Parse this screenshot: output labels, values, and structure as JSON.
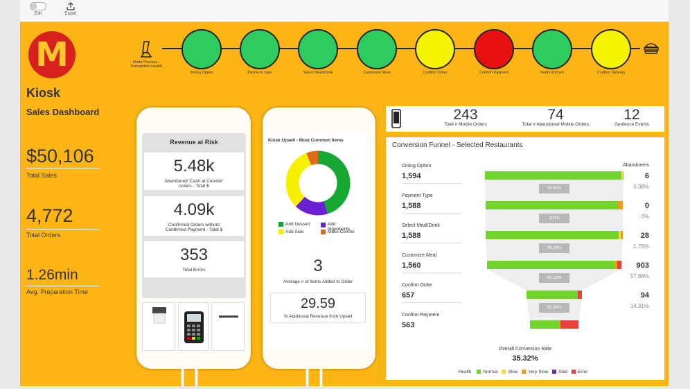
{
  "toolbar": {
    "edit_label": "Edit",
    "export_label": "Export"
  },
  "brand": {
    "logo_letter": "M",
    "title": "Kiosk",
    "subtitle": "Sales Dashboard"
  },
  "kpis": [
    {
      "value": "$50,106",
      "label": "Total Sales"
    },
    {
      "value": "4,772",
      "label": "Total Orders"
    },
    {
      "value": "1.26min",
      "label": "Avg. Preparation Time"
    }
  ],
  "pipeline": {
    "start_label": "Order Process - Transaction Health",
    "nodes": [
      {
        "label": "Dining Option",
        "color": "#2ecc5f"
      },
      {
        "label": "Payment Type",
        "color": "#2ecc5f"
      },
      {
        "label": "Select Meal/Drink",
        "color": "#2ecc5f"
      },
      {
        "label": "Customize Meal",
        "color": "#2ecc5f"
      },
      {
        "label": "Confirm Order",
        "color": "#f5f500"
      },
      {
        "label": "Confirm Payment",
        "color": "#e81010"
      },
      {
        "label": "Notify Kitchen",
        "color": "#2ecc5f"
      },
      {
        "label": "Confirm Delivery",
        "color": "#f5f500"
      }
    ]
  },
  "revenue_at_risk": {
    "title": "Revenue at Risk",
    "cards": [
      {
        "value": "5.48k",
        "label": "Abandoned 'Cash at Counter' orders - Total $"
      },
      {
        "value": "4.09k",
        "label": "Confirmed Orders without Confirmed Payment - Total $"
      },
      {
        "value": "353",
        "label": "Total Errors"
      }
    ]
  },
  "upsell": {
    "title": "Kiosk Upsell - Most Common Items",
    "legend": [
      {
        "label": "Add Dessert",
        "color": "#17a834"
      },
      {
        "label": "Add Ingredients",
        "color": "#6a1fd0"
      },
      {
        "label": "Add Side",
        "color": "#f5f000"
      },
      {
        "label": "Make Combo",
        "color": "#e06a17"
      }
    ],
    "donut_shares": [
      0.45,
      0.17,
      0.32,
      0.06
    ],
    "avg_items_value": "3",
    "avg_items_label": "Average # of Items Added to Order",
    "pct_revenue_value": "29.59",
    "pct_revenue_label": "% Additional Revenue from Upsell"
  },
  "mobile": [
    {
      "value": "243",
      "label": "Total # Mobile Orders"
    },
    {
      "value": "74",
      "label": "Total # Abandoned Mobile Orders"
    },
    {
      "value": "12",
      "label": "Geofence Events"
    }
  ],
  "funnel": {
    "title": "Conversion Funnel - Selected Restaurants",
    "abandoners_label": "Abandoners",
    "steps": [
      {
        "name": "Dining Option",
        "value": "1,594",
        "abandoners": "6",
        "abandon_pct": "0.38%",
        "conversion": "99.62%",
        "share": 1.0,
        "health": [
          0.985,
          0.01,
          0.005,
          0,
          0
        ]
      },
      {
        "name": "Payment Type",
        "value": "1,588",
        "abandoners": "0",
        "abandon_pct": "0%",
        "conversion": "100%",
        "share": 0.99,
        "health": [
          0.965,
          0.0,
          0.035,
          0,
          0
        ]
      },
      {
        "name": "Select Meal/Drink",
        "value": "1,588",
        "abandoners": "28",
        "abandon_pct": "1.76%",
        "conversion": "98.24%",
        "share": 0.99,
        "health": [
          0.97,
          0.015,
          0.015,
          0,
          0
        ]
      },
      {
        "name": "Customize Meal",
        "value": "1,560",
        "abandoners": "903",
        "abandon_pct": "57.88%",
        "conversion": "42.12%",
        "share": 0.97,
        "health": [
          0.95,
          0.0,
          0.02,
          0,
          0.03
        ]
      },
      {
        "name": "Confirm Order",
        "value": "657",
        "abandoners": "94",
        "abandon_pct": "14.31%",
        "conversion": "85.69%",
        "share": 0.4,
        "health": [
          0.93,
          0.0,
          0.0,
          0,
          0.07
        ]
      },
      {
        "name": "Confirm Payment",
        "value": "563",
        "abandoners": "",
        "abandon_pct": "",
        "conversion": "",
        "share": 0.35,
        "health": [
          0.6,
          0.0,
          0.03,
          0,
          0.37
        ]
      }
    ],
    "overall_label": "Overall Conversion Rate",
    "overall_value": "35.32%",
    "health_legend_title": "Health",
    "health_legend": [
      {
        "label": "Normal",
        "color": "#72d42a"
      },
      {
        "label": "Slow",
        "color": "#f2e040"
      },
      {
        "label": "Very Slow",
        "color": "#f59a1b"
      },
      {
        "label": "Stall",
        "color": "#6a2fb0"
      },
      {
        "label": "Error",
        "color": "#e8413c"
      }
    ]
  }
}
